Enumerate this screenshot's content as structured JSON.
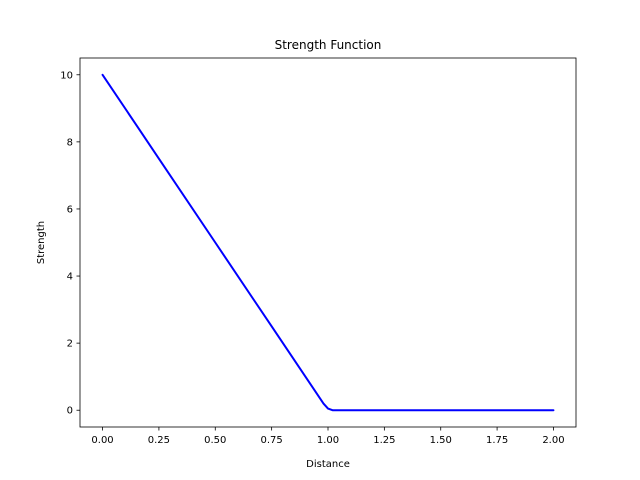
{
  "chart_data": {
    "type": "line",
    "title": "Strength Function",
    "xlabel": "Distance",
    "ylabel": "Strength",
    "xlim": [
      -0.1,
      2.1
    ],
    "ylim": [
      -0.5,
      10.5
    ],
    "xticks": [
      0.0,
      0.25,
      0.5,
      0.75,
      1.0,
      1.25,
      1.5,
      1.75,
      2.0
    ],
    "xtick_labels": [
      "0.00",
      "0.25",
      "0.50",
      "0.75",
      "1.00",
      "1.25",
      "1.50",
      "1.75",
      "2.00"
    ],
    "yticks": [
      0,
      2,
      4,
      6,
      8,
      10
    ],
    "ytick_labels": [
      "0",
      "2",
      "4",
      "6",
      "8",
      "10"
    ],
    "grid": false,
    "series": [
      {
        "color": "#0000ff",
        "x": [
          0.0,
          0.25,
          0.5,
          0.75,
          0.98,
          1.0,
          1.02,
          1.25,
          1.5,
          1.75,
          2.0
        ],
        "y": [
          10.0,
          7.5,
          5.0,
          2.5,
          0.2,
          0.05,
          0.0,
          0.0,
          0.0,
          0.0,
          0.0
        ]
      }
    ]
  }
}
